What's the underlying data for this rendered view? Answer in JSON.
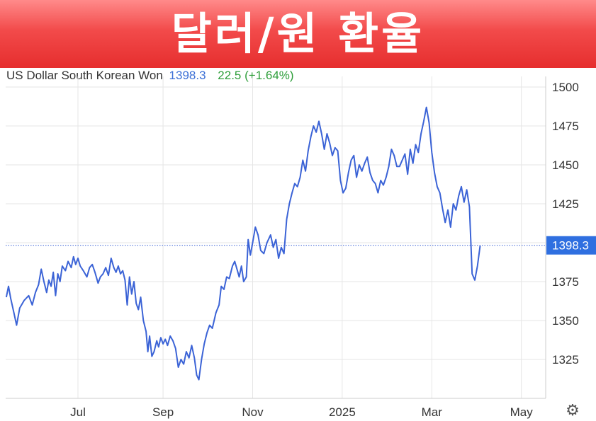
{
  "banner": {
    "title": "달러/원 환율"
  },
  "quote": {
    "name": "US Dollar South Korean Won",
    "price": "1398.3",
    "change": "22.5",
    "change_pct": "(+1.64%)"
  },
  "colors": {
    "line": "#3b63d6",
    "last_label_bg": "#2f6fe0",
    "grid": "#e6e6e6",
    "banner": "#ee3a3a"
  },
  "icons": {
    "settings": "gear-icon"
  },
  "chart_data": {
    "type": "line",
    "title": "",
    "xlabel": "",
    "ylabel": "",
    "ylim": [
      1300,
      1510
    ],
    "yticks": [
      1325,
      1350,
      1375,
      1400,
      1425,
      1450,
      1475,
      1500
    ],
    "ytick_labels": [
      "1325",
      "1350",
      "1375",
      "",
      "1425",
      "1450",
      "1475",
      "1500"
    ],
    "xticks": [
      {
        "label": "Jul",
        "x": 0.1
      },
      {
        "label": "Sep",
        "x": 2.0
      },
      {
        "label": "Nov",
        "x": 4.0
      },
      {
        "label": "2025",
        "x": 6.0
      },
      {
        "label": "Mar",
        "x": 8.0
      },
      {
        "label": "May",
        "x": 10.0
      }
    ],
    "xlim": [
      -1.5,
      10.5
    ],
    "last_value": 1398.3,
    "last_value_label": "1398.3",
    "grid": true,
    "series": [
      {
        "points": [
          [
            -1.5,
            1365
          ],
          [
            -1.45,
            1372
          ],
          [
            -1.4,
            1364
          ],
          [
            -1.33,
            1355
          ],
          [
            -1.27,
            1347
          ],
          [
            -1.2,
            1358
          ],
          [
            -1.1,
            1363
          ],
          [
            -1.0,
            1366
          ],
          [
            -0.92,
            1360
          ],
          [
            -0.85,
            1368
          ],
          [
            -0.78,
            1373
          ],
          [
            -0.72,
            1383
          ],
          [
            -0.66,
            1375
          ],
          [
            -0.6,
            1368
          ],
          [
            -0.55,
            1376
          ],
          [
            -0.5,
            1372
          ],
          [
            -0.45,
            1381
          ],
          [
            -0.4,
            1366
          ],
          [
            -0.35,
            1380
          ],
          [
            -0.3,
            1375
          ],
          [
            -0.25,
            1385
          ],
          [
            -0.18,
            1382
          ],
          [
            -0.12,
            1388
          ],
          [
            -0.05,
            1384
          ],
          [
            0.0,
            1391
          ],
          [
            0.05,
            1386
          ],
          [
            0.1,
            1390
          ],
          [
            0.15,
            1385
          ],
          [
            0.22,
            1382
          ],
          [
            0.3,
            1378
          ],
          [
            0.36,
            1384
          ],
          [
            0.42,
            1386
          ],
          [
            0.48,
            1381
          ],
          [
            0.55,
            1374
          ],
          [
            0.6,
            1378
          ],
          [
            0.66,
            1380
          ],
          [
            0.72,
            1384
          ],
          [
            0.78,
            1379
          ],
          [
            0.84,
            1390
          ],
          [
            0.9,
            1384
          ],
          [
            0.95,
            1381
          ],
          [
            1.0,
            1385
          ],
          [
            1.05,
            1380
          ],
          [
            1.1,
            1382
          ],
          [
            1.15,
            1376
          ],
          [
            1.2,
            1360
          ],
          [
            1.25,
            1378
          ],
          [
            1.3,
            1367
          ],
          [
            1.35,
            1375
          ],
          [
            1.4,
            1361
          ],
          [
            1.45,
            1357
          ],
          [
            1.5,
            1365
          ],
          [
            1.56,
            1350
          ],
          [
            1.62,
            1343
          ],
          [
            1.66,
            1330
          ],
          [
            1.7,
            1340
          ],
          [
            1.75,
            1327
          ],
          [
            1.8,
            1330
          ],
          [
            1.86,
            1337
          ],
          [
            1.9,
            1333
          ],
          [
            1.95,
            1339
          ],
          [
            2.0,
            1335
          ],
          [
            2.05,
            1338
          ],
          [
            2.1,
            1334
          ],
          [
            2.16,
            1340
          ],
          [
            2.22,
            1337
          ],
          [
            2.28,
            1332
          ],
          [
            2.34,
            1320
          ],
          [
            2.4,
            1325
          ],
          [
            2.46,
            1322
          ],
          [
            2.52,
            1330
          ],
          [
            2.58,
            1326
          ],
          [
            2.64,
            1334
          ],
          [
            2.7,
            1326
          ],
          [
            2.75,
            1315
          ],
          [
            2.8,
            1312
          ],
          [
            2.86,
            1325
          ],
          [
            2.92,
            1335
          ],
          [
            2.98,
            1342
          ],
          [
            3.04,
            1347
          ],
          [
            3.1,
            1345
          ],
          [
            3.18,
            1355
          ],
          [
            3.25,
            1360
          ],
          [
            3.3,
            1372
          ],
          [
            3.36,
            1370
          ],
          [
            3.42,
            1378
          ],
          [
            3.48,
            1377
          ],
          [
            3.55,
            1385
          ],
          [
            3.6,
            1388
          ],
          [
            3.65,
            1383
          ],
          [
            3.7,
            1378
          ],
          [
            3.75,
            1385
          ],
          [
            3.8,
            1375
          ],
          [
            3.86,
            1378
          ],
          [
            3.9,
            1402
          ],
          [
            3.95,
            1392
          ],
          [
            4.0,
            1400
          ],
          [
            4.06,
            1410
          ],
          [
            4.12,
            1405
          ],
          [
            4.18,
            1395
          ],
          [
            4.25,
            1393
          ],
          [
            4.32,
            1400
          ],
          [
            4.4,
            1405
          ],
          [
            4.46,
            1397
          ],
          [
            4.52,
            1402
          ],
          [
            4.58,
            1390
          ],
          [
            4.64,
            1397
          ],
          [
            4.7,
            1393
          ],
          [
            4.76,
            1415
          ],
          [
            4.82,
            1425
          ],
          [
            4.88,
            1432
          ],
          [
            4.94,
            1438
          ],
          [
            5.0,
            1436
          ],
          [
            5.06,
            1442
          ],
          [
            5.12,
            1453
          ],
          [
            5.18,
            1446
          ],
          [
            5.24,
            1459
          ],
          [
            5.3,
            1468
          ],
          [
            5.36,
            1475
          ],
          [
            5.42,
            1471
          ],
          [
            5.48,
            1478
          ],
          [
            5.54,
            1470
          ],
          [
            5.6,
            1460
          ],
          [
            5.66,
            1470
          ],
          [
            5.72,
            1464
          ],
          [
            5.78,
            1456
          ],
          [
            5.84,
            1461
          ],
          [
            5.9,
            1459
          ],
          [
            5.96,
            1440
          ],
          [
            6.02,
            1432
          ],
          [
            6.08,
            1435
          ],
          [
            6.14,
            1445
          ],
          [
            6.2,
            1453
          ],
          [
            6.26,
            1456
          ],
          [
            6.32,
            1442
          ],
          [
            6.38,
            1450
          ],
          [
            6.44,
            1446
          ],
          [
            6.5,
            1451
          ],
          [
            6.56,
            1455
          ],
          [
            6.62,
            1445
          ],
          [
            6.68,
            1440
          ],
          [
            6.74,
            1438
          ],
          [
            6.8,
            1432
          ],
          [
            6.86,
            1440
          ],
          [
            6.92,
            1437
          ],
          [
            6.98,
            1442
          ],
          [
            7.04,
            1449
          ],
          [
            7.1,
            1460
          ],
          [
            7.16,
            1456
          ],
          [
            7.22,
            1449
          ],
          [
            7.28,
            1449
          ],
          [
            7.34,
            1453
          ],
          [
            7.4,
            1457
          ],
          [
            7.46,
            1444
          ],
          [
            7.52,
            1460
          ],
          [
            7.58,
            1451
          ],
          [
            7.64,
            1463
          ],
          [
            7.7,
            1458
          ],
          [
            7.76,
            1470
          ],
          [
            7.82,
            1478
          ],
          [
            7.88,
            1487
          ],
          [
            7.94,
            1477
          ],
          [
            8.0,
            1458
          ],
          [
            8.06,
            1445
          ],
          [
            8.12,
            1436
          ],
          [
            8.18,
            1432
          ],
          [
            8.24,
            1422
          ],
          [
            8.3,
            1413
          ],
          [
            8.36,
            1421
          ],
          [
            8.42,
            1410
          ],
          [
            8.48,
            1425
          ],
          [
            8.54,
            1421
          ],
          [
            8.6,
            1430
          ],
          [
            8.66,
            1436
          ],
          [
            8.72,
            1426
          ],
          [
            8.78,
            1434
          ],
          [
            8.84,
            1423
          ],
          [
            8.9,
            1380
          ],
          [
            8.96,
            1376
          ],
          [
            9.02,
            1385
          ],
          [
            9.08,
            1398
          ]
        ]
      }
    ]
  }
}
